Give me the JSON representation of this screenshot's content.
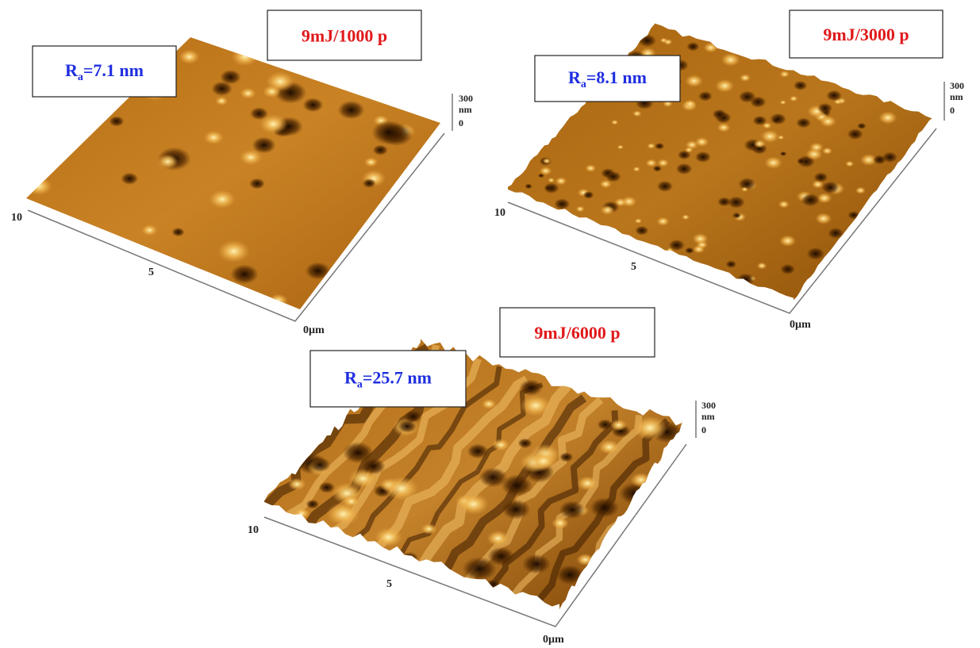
{
  "panels": [
    {
      "label": "9mJ/1000 p",
      "ra_symbol": "R",
      "ra_subscript": "a",
      "ra_value": "=7.1 nm",
      "axis": {
        "x_far": "10",
        "x_mid": "5",
        "x_origin": "0µm",
        "z_top": "300",
        "z_unit": "nm",
        "z_zero": "0"
      }
    },
    {
      "label": "9mJ/3000 p",
      "ra_symbol": "R",
      "ra_subscript": "a",
      "ra_value": "=8.1 nm",
      "axis": {
        "x_far": "10",
        "x_mid": "5",
        "x_origin": "0µm",
        "z_top": "300",
        "z_unit": "nm",
        "z_zero": "0"
      }
    },
    {
      "label": "9mJ/6000 p",
      "ra_symbol": "R",
      "ra_subscript": "a",
      "ra_value": "=25.7 nm",
      "axis": {
        "x_far": "10",
        "x_mid": "5",
        "x_origin": "0µm",
        "z_top": "300",
        "z_unit": "nm",
        "z_zero": "0"
      }
    }
  ]
}
